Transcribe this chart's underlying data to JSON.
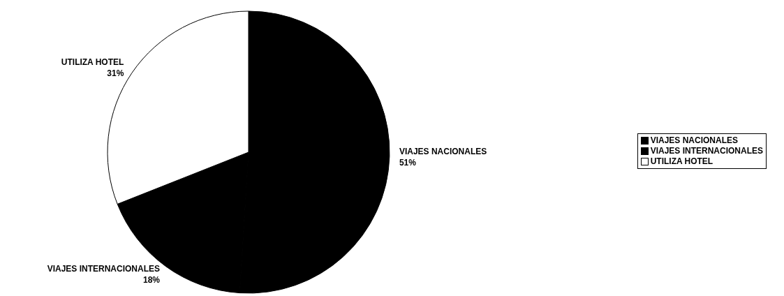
{
  "chart_data": {
    "type": "pie",
    "categories": [
      "VIAJES NACIONALES",
      "VIAJES INTERNACIONALES",
      "UTILIZA HOTEL"
    ],
    "values": [
      51,
      18,
      31
    ],
    "colors": [
      "#000000",
      "#000000",
      "#ffffff"
    ],
    "value_labels": [
      "51%",
      "18%",
      "31%"
    ],
    "legend": "right"
  }
}
